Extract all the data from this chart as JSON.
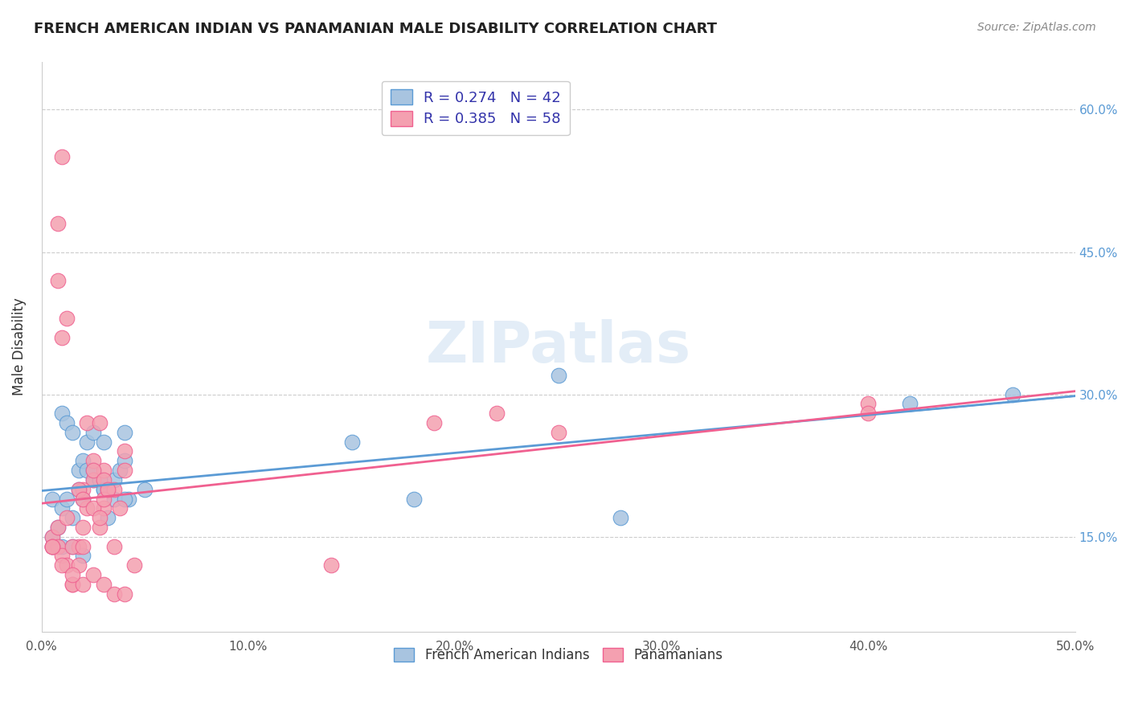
{
  "title": "FRENCH AMERICAN INDIAN VS PANAMANIAN MALE DISABILITY CORRELATION CHART",
  "source": "Source: ZipAtlas.com",
  "ylabel_label": "Male Disability",
  "legend_label1": "French American Indians",
  "legend_label2": "Panamanians",
  "R1": 0.274,
  "N1": 42,
  "R2": 0.385,
  "N2": 58,
  "color_blue": "#a8c4e0",
  "color_pink": "#f4a0b0",
  "line_color_blue": "#5b9bd5",
  "line_color_pink": "#f06090",
  "watermark": "ZIPatlas",
  "xlim": [
    0.0,
    0.5
  ],
  "ylim": [
    0.05,
    0.65
  ],
  "blue_scatter_x": [
    0.005,
    0.01,
    0.012,
    0.015,
    0.018,
    0.02,
    0.022,
    0.025,
    0.028,
    0.03,
    0.032,
    0.035,
    0.038,
    0.04,
    0.042,
    0.005,
    0.008,
    0.01,
    0.012,
    0.015,
    0.018,
    0.02,
    0.022,
    0.025,
    0.028,
    0.03,
    0.035,
    0.04,
    0.005,
    0.01,
    0.015,
    0.02,
    0.025,
    0.03,
    0.04,
    0.05,
    0.15,
    0.18,
    0.25,
    0.28,
    0.42,
    0.47
  ],
  "blue_scatter_y": [
    0.19,
    0.28,
    0.27,
    0.26,
    0.22,
    0.23,
    0.25,
    0.21,
    0.21,
    0.2,
    0.17,
    0.21,
    0.22,
    0.23,
    0.19,
    0.15,
    0.16,
    0.18,
    0.19,
    0.17,
    0.2,
    0.19,
    0.22,
    0.26,
    0.21,
    0.2,
    0.19,
    0.26,
    0.14,
    0.14,
    0.14,
    0.13,
    0.22,
    0.25,
    0.19,
    0.2,
    0.25,
    0.19,
    0.32,
    0.17,
    0.29,
    0.3
  ],
  "pink_scatter_x": [
    0.005,
    0.008,
    0.01,
    0.012,
    0.015,
    0.018,
    0.02,
    0.022,
    0.025,
    0.028,
    0.03,
    0.032,
    0.035,
    0.038,
    0.04,
    0.005,
    0.008,
    0.01,
    0.012,
    0.015,
    0.018,
    0.02,
    0.022,
    0.025,
    0.028,
    0.03,
    0.035,
    0.04,
    0.005,
    0.008,
    0.01,
    0.015,
    0.02,
    0.025,
    0.03,
    0.035,
    0.04,
    0.045,
    0.005,
    0.01,
    0.015,
    0.02,
    0.025,
    0.03,
    0.14,
    0.19,
    0.22,
    0.25,
    0.4,
    0.4,
    0.008,
    0.012,
    0.018,
    0.02,
    0.025,
    0.028,
    0.03,
    0.032
  ],
  "pink_scatter_y": [
    0.14,
    0.42,
    0.36,
    0.38,
    0.1,
    0.14,
    0.16,
    0.27,
    0.21,
    0.27,
    0.22,
    0.2,
    0.2,
    0.18,
    0.22,
    0.15,
    0.14,
    0.13,
    0.12,
    0.14,
    0.12,
    0.14,
    0.18,
    0.23,
    0.16,
    0.18,
    0.14,
    0.24,
    0.14,
    0.48,
    0.55,
    0.1,
    0.1,
    0.11,
    0.1,
    0.09,
    0.09,
    0.12,
    0.14,
    0.12,
    0.11,
    0.2,
    0.22,
    0.21,
    0.12,
    0.27,
    0.28,
    0.26,
    0.29,
    0.28,
    0.16,
    0.17,
    0.2,
    0.19,
    0.18,
    0.17,
    0.19,
    0.2
  ]
}
